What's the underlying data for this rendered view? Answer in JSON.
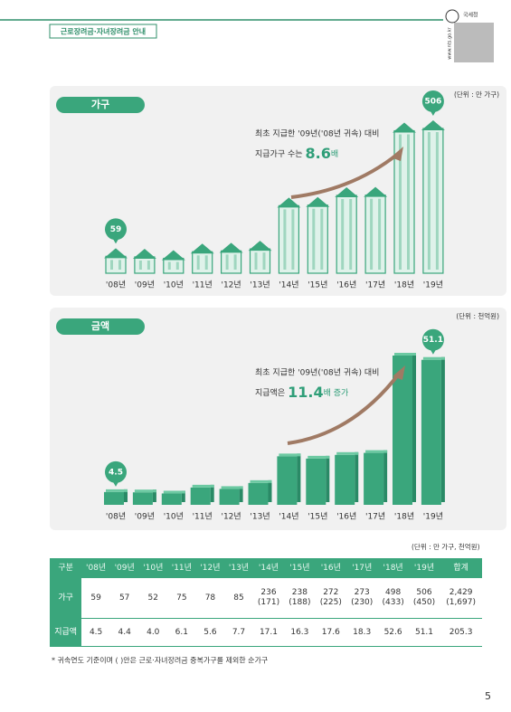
{
  "header": {
    "section": "근로장려금·자녀장려금 안내",
    "logo_text": "국세청",
    "url": "www.nts.go.kr"
  },
  "chart_data": [
    {
      "type": "bar",
      "marker": "house",
      "title": "가구",
      "unit": "(단위 : 만 가구)",
      "color": "#3aa67c",
      "categories": [
        "'08년",
        "'09년",
        "'10년",
        "'11년",
        "'12년",
        "'13년",
        "'14년",
        "'15년",
        "'16년",
        "'17년",
        "'18년",
        "'19년"
      ],
      "values": [
        59,
        57,
        52,
        75,
        78,
        85,
        236,
        238,
        272,
        273,
        498,
        506
      ],
      "value_labels": [
        "59",
        null,
        null,
        null,
        null,
        null,
        null,
        null,
        null,
        null,
        null,
        "506"
      ],
      "annotation": {
        "line1": "최초 지급한 '09년('08년 귀속) 대비",
        "prefix": "지급가구 수는",
        "highlight": "8.6",
        "suffix": "배"
      }
    },
    {
      "type": "bar",
      "marker": "stack",
      "title": "금액",
      "unit": "(단위 : 천억원)",
      "color": "#3aa67c",
      "categories": [
        "'08년",
        "'09년",
        "'10년",
        "'11년",
        "'12년",
        "'13년",
        "'14년",
        "'15년",
        "'16년",
        "'17년",
        "'18년",
        "'19년"
      ],
      "values": [
        4.5,
        4.4,
        4.0,
        6.1,
        5.6,
        7.7,
        17.1,
        16.3,
        17.6,
        18.3,
        52.6,
        51.1
      ],
      "value_labels": [
        "4.5",
        null,
        null,
        null,
        null,
        null,
        null,
        null,
        null,
        null,
        null,
        "51.1"
      ],
      "annotation": {
        "line1": "최초 지급한 '09년('08년 귀속) 대비",
        "prefix": "지급액은",
        "highlight": "11.4",
        "suffix": "배 증가"
      }
    }
  ],
  "table": {
    "unit": "(단위 : 만 가구, 천억원)",
    "header": [
      "구분",
      "'08년",
      "'09년",
      "'10년",
      "'11년",
      "'12년",
      "'13년",
      "'14년",
      "'15년",
      "'16년",
      "'17년",
      "'18년",
      "'19년",
      "합계"
    ],
    "rows": [
      [
        "가구",
        "59",
        "57",
        "52",
        "75",
        "78",
        "85",
        "236\n(171)",
        "238\n(188)",
        "272\n(225)",
        "273\n(230)",
        "498\n(433)",
        "506\n(450)",
        "2,429\n(1,697)"
      ],
      [
        "지급액",
        "4.5",
        "4.4",
        "4.0",
        "6.1",
        "5.6",
        "7.7",
        "17.1",
        "16.3",
        "17.6",
        "18.3",
        "52.6",
        "51.1",
        "205.3"
      ]
    ]
  },
  "footnote": "* 귀속연도 기준이며 ( )안은 근로·자녀장려금 중복가구를 제외한 순가구",
  "page_number": "5"
}
